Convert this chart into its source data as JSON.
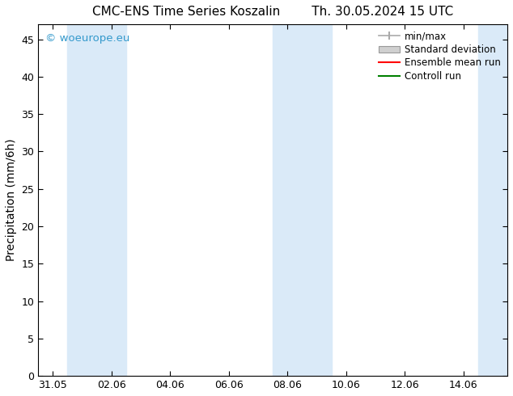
{
  "title_left": "CMC-ENS Time Series Koszalin",
  "title_right": "Th. 30.05.2024 15 UTC",
  "ylabel": "Precipitation (mm/6h)",
  "xlim_start": -0.5,
  "xlim_end": 15.5,
  "ylim": [
    0,
    47
  ],
  "yticks": [
    0,
    5,
    10,
    15,
    20,
    25,
    30,
    35,
    40,
    45
  ],
  "xtick_labels": [
    "31.05",
    "02.06",
    "04.06",
    "06.06",
    "08.06",
    "10.06",
    "12.06",
    "14.06"
  ],
  "xtick_positions": [
    0,
    2,
    4,
    6,
    8,
    10,
    12,
    14
  ],
  "shaded_bands": [
    {
      "x_start": 0.5,
      "x_end": 2.5
    },
    {
      "x_start": 7.5,
      "x_end": 9.5
    },
    {
      "x_start": 14.5,
      "x_end": 15.5
    }
  ],
  "band_color": "#daeaf8",
  "watermark_text": "© woeurope.eu",
  "watermark_color": "#3399cc",
  "bg_color": "#ffffff",
  "plot_bg_color": "#ffffff",
  "title_fontsize": 11,
  "axis_label_fontsize": 10,
  "tick_fontsize": 9,
  "legend_fontsize": 8.5
}
